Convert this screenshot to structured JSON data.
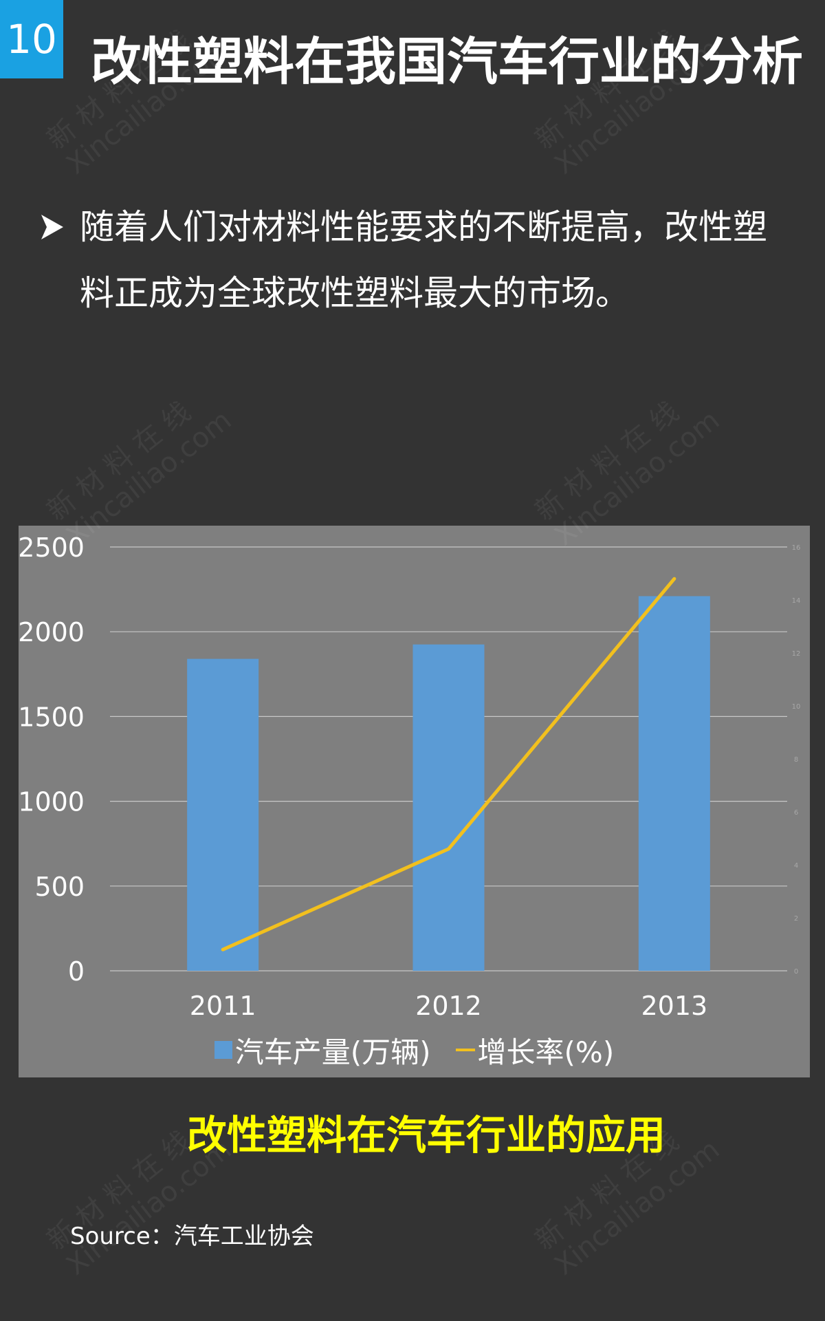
{
  "header": {
    "page_number": "10",
    "title": "改性塑料在我国汽车行业的分析"
  },
  "bullet": {
    "text": "随着人们对材料性能要求的不断提高，改性塑料正成为全球改性塑料最大的市场。"
  },
  "watermark": {
    "line1": "新 材 料 在 线",
    "line2": "Xincailiao.com"
  },
  "chart_data": {
    "type": "bar",
    "categories": [
      "2011",
      "2012",
      "2013"
    ],
    "series": [
      {
        "name": "汽车产量(万辆)",
        "type": "bar",
        "axis": "left",
        "values": [
          1840,
          1925,
          2210
        ],
        "color": "#5b9bd5"
      },
      {
        "name": "增长率(%)",
        "type": "line",
        "axis": "right",
        "values": [
          0.8,
          4.6,
          14.8
        ],
        "color": "#f2c01e"
      }
    ],
    "ylim": [
      0,
      2500
    ],
    "y_ticks": [
      0,
      500,
      1000,
      1500,
      2000,
      2500
    ],
    "y2lim": [
      0,
      16
    ],
    "y2_ticks": [
      0,
      2,
      4,
      6,
      8,
      10,
      12,
      14,
      16
    ],
    "grid": true,
    "legend_position": "bottom",
    "background": "#7f7f7f"
  },
  "caption": {
    "text": "改性塑料在汽车行业的应用",
    "color": "#ffff00"
  },
  "source": {
    "text": "Source：汽车工业协会"
  }
}
